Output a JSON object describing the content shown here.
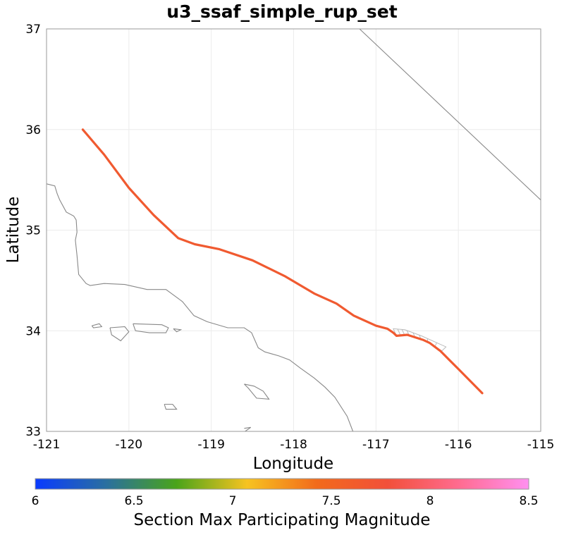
{
  "title": "u3_ssaf_simple_rup_set",
  "xlabel": "Longitude",
  "ylabel": "Latitude",
  "x_ticks": [
    "-121",
    "-120",
    "-119",
    "-118",
    "-117",
    "-116",
    "-115"
  ],
  "y_ticks": [
    "37",
    "36",
    "35",
    "34",
    "33"
  ],
  "colorbar": {
    "label": "Section Max Participating Magnitude",
    "ticks": [
      "6",
      "6.5",
      "7",
      "7.5",
      "8",
      "8.5"
    ],
    "range": [
      6,
      8.5
    ],
    "gradient": [
      "#0a3bff",
      "#2a6fa0",
      "#4aa41a",
      "#f7c320",
      "#f26a1b",
      "#f2503a",
      "#ff6b8f",
      "#ff90f0"
    ]
  },
  "chart_data": {
    "type": "map",
    "xlim": [
      -121,
      -115
    ],
    "ylim": [
      33,
      37
    ],
    "grid": true,
    "fault_trace": {
      "color": "#f05a30",
      "magnitude": 8.0,
      "points": [
        [
          -120.56,
          36.0
        ],
        [
          -120.3,
          35.75
        ],
        [
          -120.0,
          35.42
        ],
        [
          -119.7,
          35.15
        ],
        [
          -119.4,
          34.92
        ],
        [
          -119.2,
          34.86
        ],
        [
          -118.9,
          34.81
        ],
        [
          -118.5,
          34.7
        ],
        [
          -118.1,
          34.54
        ],
        [
          -117.75,
          34.37
        ],
        [
          -117.48,
          34.27
        ],
        [
          -117.27,
          34.15
        ],
        [
          -117.0,
          34.05
        ],
        [
          -116.86,
          34.02
        ],
        [
          -116.79,
          33.98
        ],
        [
          -116.75,
          33.95
        ],
        [
          -116.62,
          33.96
        ],
        [
          -116.43,
          33.91
        ],
        [
          -116.35,
          33.88
        ],
        [
          -116.22,
          33.8
        ],
        [
          -116.0,
          33.62
        ],
        [
          -115.71,
          33.38
        ]
      ]
    },
    "dipping_section_outline": {
      "top": [
        [
          -116.79,
          34.02
        ],
        [
          -116.65,
          34.01
        ],
        [
          -116.45,
          33.95
        ],
        [
          -116.15,
          33.84
        ]
      ],
      "bottom": [
        [
          -116.75,
          33.95
        ],
        [
          -116.62,
          33.96
        ],
        [
          -116.43,
          33.91
        ],
        [
          -116.2,
          33.8
        ]
      ]
    },
    "boundary_line": [
      [
        -117.2,
        37.0
      ],
      [
        -115.0,
        35.3
      ]
    ],
    "coastline": [
      [
        -121.0,
        35.46
      ],
      [
        -120.9,
        35.44
      ],
      [
        -120.87,
        35.36
      ],
      [
        -120.84,
        35.3
      ],
      [
        -120.76,
        35.18
      ],
      [
        -120.67,
        35.14
      ],
      [
        -120.64,
        35.1
      ],
      [
        -120.63,
        34.98
      ],
      [
        -120.65,
        34.9
      ],
      [
        -120.63,
        34.75
      ],
      [
        -120.61,
        34.56
      ],
      [
        -120.52,
        34.47
      ],
      [
        -120.47,
        34.45
      ],
      [
        -120.3,
        34.47
      ],
      [
        -120.05,
        34.46
      ],
      [
        -119.78,
        34.41
      ],
      [
        -119.55,
        34.41
      ],
      [
        -119.35,
        34.29
      ],
      [
        -119.21,
        34.15
      ],
      [
        -119.05,
        34.09
      ],
      [
        -118.8,
        34.03
      ],
      [
        -118.6,
        34.03
      ],
      [
        -118.51,
        33.98
      ],
      [
        -118.43,
        33.83
      ],
      [
        -118.35,
        33.79
      ],
      [
        -118.18,
        33.75
      ],
      [
        -118.05,
        33.71
      ],
      [
        -117.92,
        33.63
      ],
      [
        -117.75,
        33.53
      ],
      [
        -117.62,
        33.44
      ],
      [
        -117.5,
        33.34
      ],
      [
        -117.35,
        33.15
      ],
      [
        -117.28,
        33.0
      ]
    ],
    "islands": [
      [
        [
          -120.45,
          34.05
        ],
        [
          -120.36,
          34.07
        ],
        [
          -120.33,
          34.04
        ],
        [
          -120.43,
          34.03
        ],
        [
          -120.45,
          34.05
        ]
      ],
      [
        [
          -120.23,
          34.03
        ],
        [
          -120.05,
          34.04
        ],
        [
          -120.0,
          33.99
        ],
        [
          -120.1,
          33.9
        ],
        [
          -120.21,
          33.96
        ],
        [
          -120.23,
          34.03
        ]
      ],
      [
        [
          -119.95,
          34.07
        ],
        [
          -119.6,
          34.06
        ],
        [
          -119.52,
          34.03
        ],
        [
          -119.55,
          33.98
        ],
        [
          -119.75,
          33.98
        ],
        [
          -119.92,
          34.0
        ],
        [
          -119.95,
          34.07
        ]
      ],
      [
        [
          -119.46,
          34.02
        ],
        [
          -119.37,
          34.01
        ],
        [
          -119.42,
          33.99
        ],
        [
          -119.46,
          34.02
        ]
      ],
      [
        [
          -118.6,
          33.47
        ],
        [
          -118.48,
          33.45
        ],
        [
          -118.37,
          33.4
        ],
        [
          -118.3,
          33.32
        ],
        [
          -118.45,
          33.33
        ],
        [
          -118.55,
          33.43
        ],
        [
          -118.6,
          33.47
        ]
      ],
      [
        [
          -119.57,
          33.27
        ],
        [
          -119.47,
          33.27
        ],
        [
          -119.42,
          33.22
        ],
        [
          -119.55,
          33.22
        ],
        [
          -119.57,
          33.27
        ]
      ],
      [
        [
          -118.6,
          33.03
        ],
        [
          -118.52,
          33.04
        ],
        [
          -118.59,
          33.0
        ]
      ]
    ]
  }
}
